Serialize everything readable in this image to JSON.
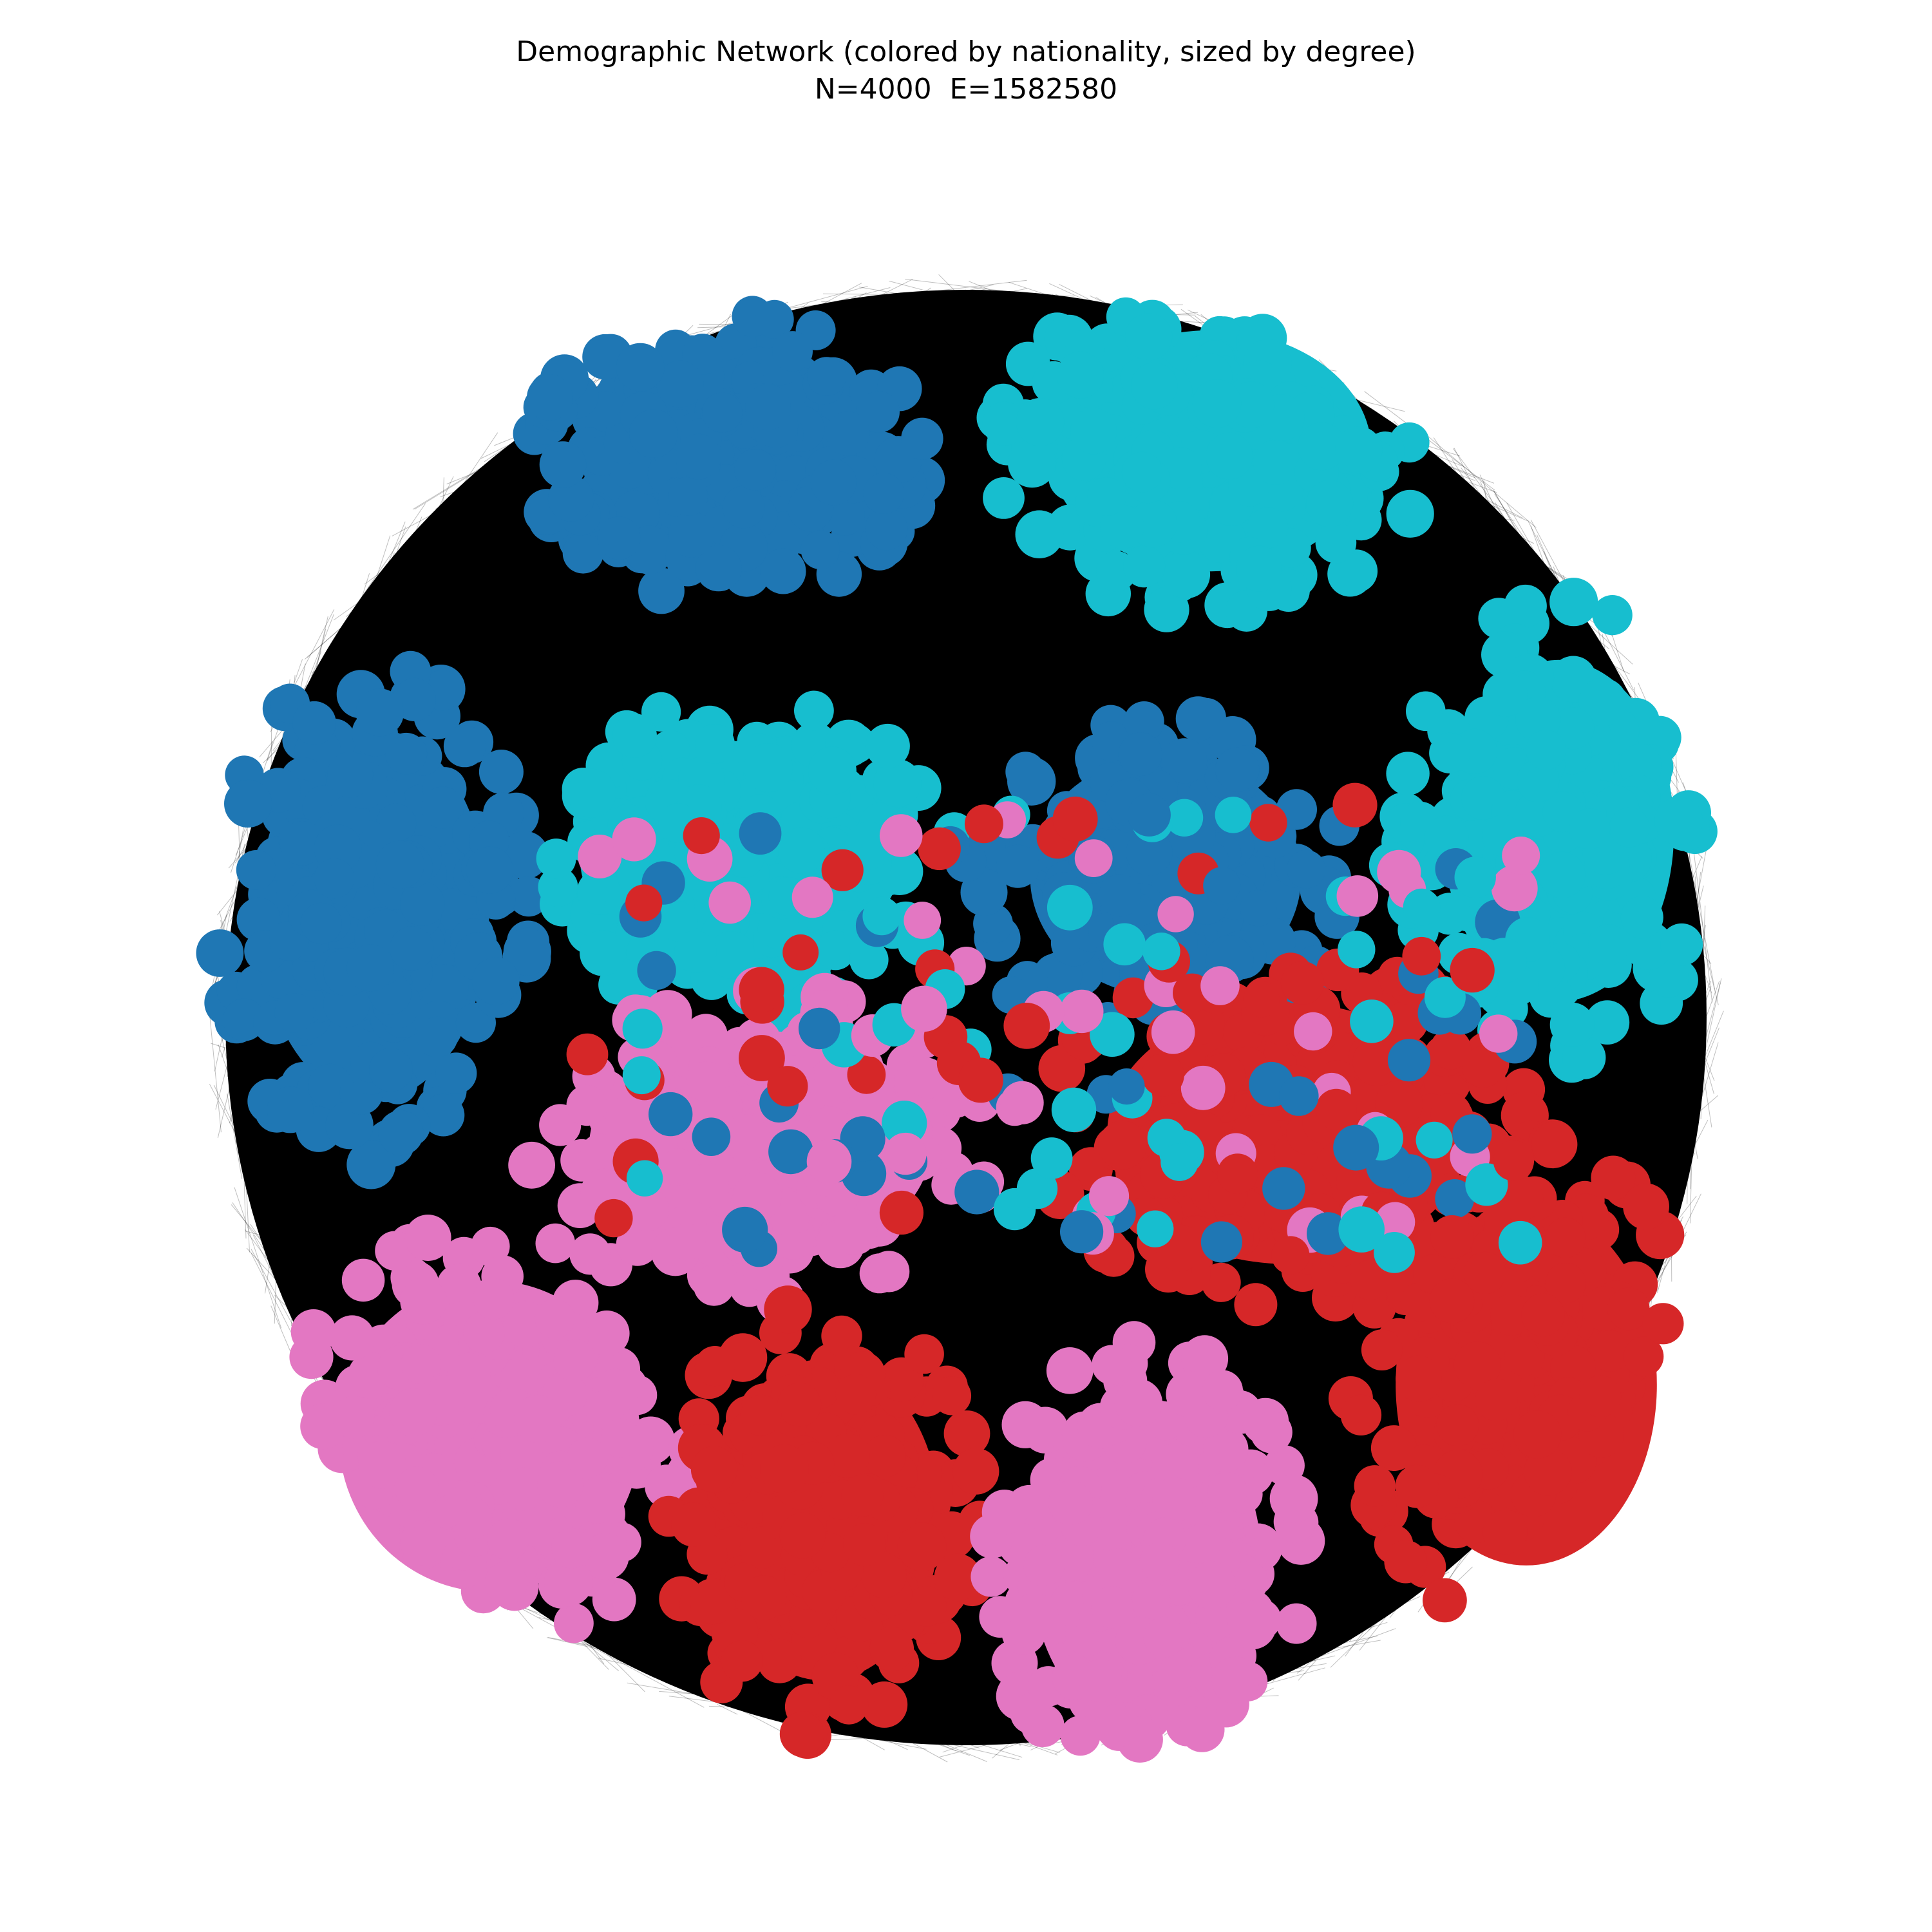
{
  "figure": {
    "title_line1": "Demographic Network (colored by nationality, sized by degree)",
    "title_line2": "N=4000  E=1582580"
  },
  "network": {
    "node_count": 4000,
    "edge_count": 1582580,
    "node_colors": [
      "#1f77b4",
      "#17becf",
      "#e377c2",
      "#d62728"
    ],
    "edge_color": "#000000",
    "background": "#ffffff"
  }
}
